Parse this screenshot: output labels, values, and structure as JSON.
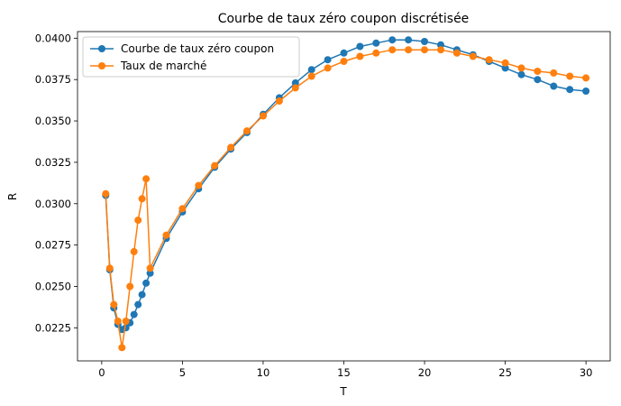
{
  "chart_data": {
    "type": "line",
    "title": "Courbe de taux zéro coupon discrétisée",
    "xlabel": "T",
    "ylabel": "R",
    "xlim": [
      -1.5,
      31.5
    ],
    "ylim": [
      0.0205,
      0.0404
    ],
    "xticks": [
      0,
      5,
      10,
      15,
      20,
      25,
      30
    ],
    "xtick_labels": [
      "0",
      "5",
      "10",
      "15",
      "20",
      "25",
      "30"
    ],
    "yticks": [
      0.0225,
      0.025,
      0.0275,
      0.03,
      0.0325,
      0.035,
      0.0375,
      0.04
    ],
    "ytick_labels": [
      "0.0225",
      "0.0250",
      "0.0275",
      "0.0300",
      "0.0325",
      "0.0350",
      "0.0375",
      "0.0400"
    ],
    "grid": false,
    "legend_position": "top-left",
    "series": [
      {
        "name": "Courbe de taux zéro coupon",
        "color": "#1f77b4",
        "marker": "circle",
        "x": [
          0.25,
          0.5,
          0.75,
          1.0,
          1.25,
          1.5,
          1.75,
          2.0,
          2.25,
          2.5,
          2.75,
          3,
          4,
          5,
          6,
          7,
          8,
          9,
          10,
          11,
          12,
          13,
          14,
          15,
          16,
          17,
          18,
          19,
          20,
          21,
          22,
          23,
          24,
          25,
          26,
          27,
          28,
          29,
          30
        ],
        "values": [
          0.0305,
          0.026,
          0.0237,
          0.0227,
          0.0224,
          0.0225,
          0.0228,
          0.0233,
          0.0239,
          0.0245,
          0.0252,
          0.0258,
          0.0279,
          0.0295,
          0.0309,
          0.0322,
          0.0333,
          0.0343,
          0.0354,
          0.0364,
          0.0373,
          0.0381,
          0.0387,
          0.0391,
          0.0395,
          0.0397,
          0.0399,
          0.0399,
          0.0398,
          0.0396,
          0.0393,
          0.039,
          0.0386,
          0.0382,
          0.0378,
          0.0375,
          0.0371,
          0.0369,
          0.0368
        ]
      },
      {
        "name": "Taux de marché",
        "color": "#ff7f0e",
        "marker": "circle",
        "x": [
          0.25,
          0.5,
          0.75,
          1.0,
          1.25,
          1.5,
          1.75,
          2.0,
          2.25,
          2.5,
          2.75,
          3,
          4,
          5,
          6,
          7,
          8,
          9,
          10,
          11,
          12,
          13,
          14,
          15,
          16,
          17,
          18,
          19,
          20,
          21,
          22,
          23,
          24,
          25,
          26,
          27,
          28,
          29,
          30
        ],
        "values": [
          0.0306,
          0.0261,
          0.0239,
          0.0229,
          0.0213,
          0.0229,
          0.025,
          0.0271,
          0.029,
          0.0303,
          0.0315,
          0.0261,
          0.0281,
          0.0297,
          0.0311,
          0.0323,
          0.0334,
          0.0344,
          0.0353,
          0.0362,
          0.037,
          0.0377,
          0.0382,
          0.0386,
          0.0389,
          0.0391,
          0.0393,
          0.0393,
          0.0393,
          0.0393,
          0.0391,
          0.0389,
          0.0387,
          0.0385,
          0.0382,
          0.038,
          0.0379,
          0.0377,
          0.0376
        ]
      }
    ]
  }
}
